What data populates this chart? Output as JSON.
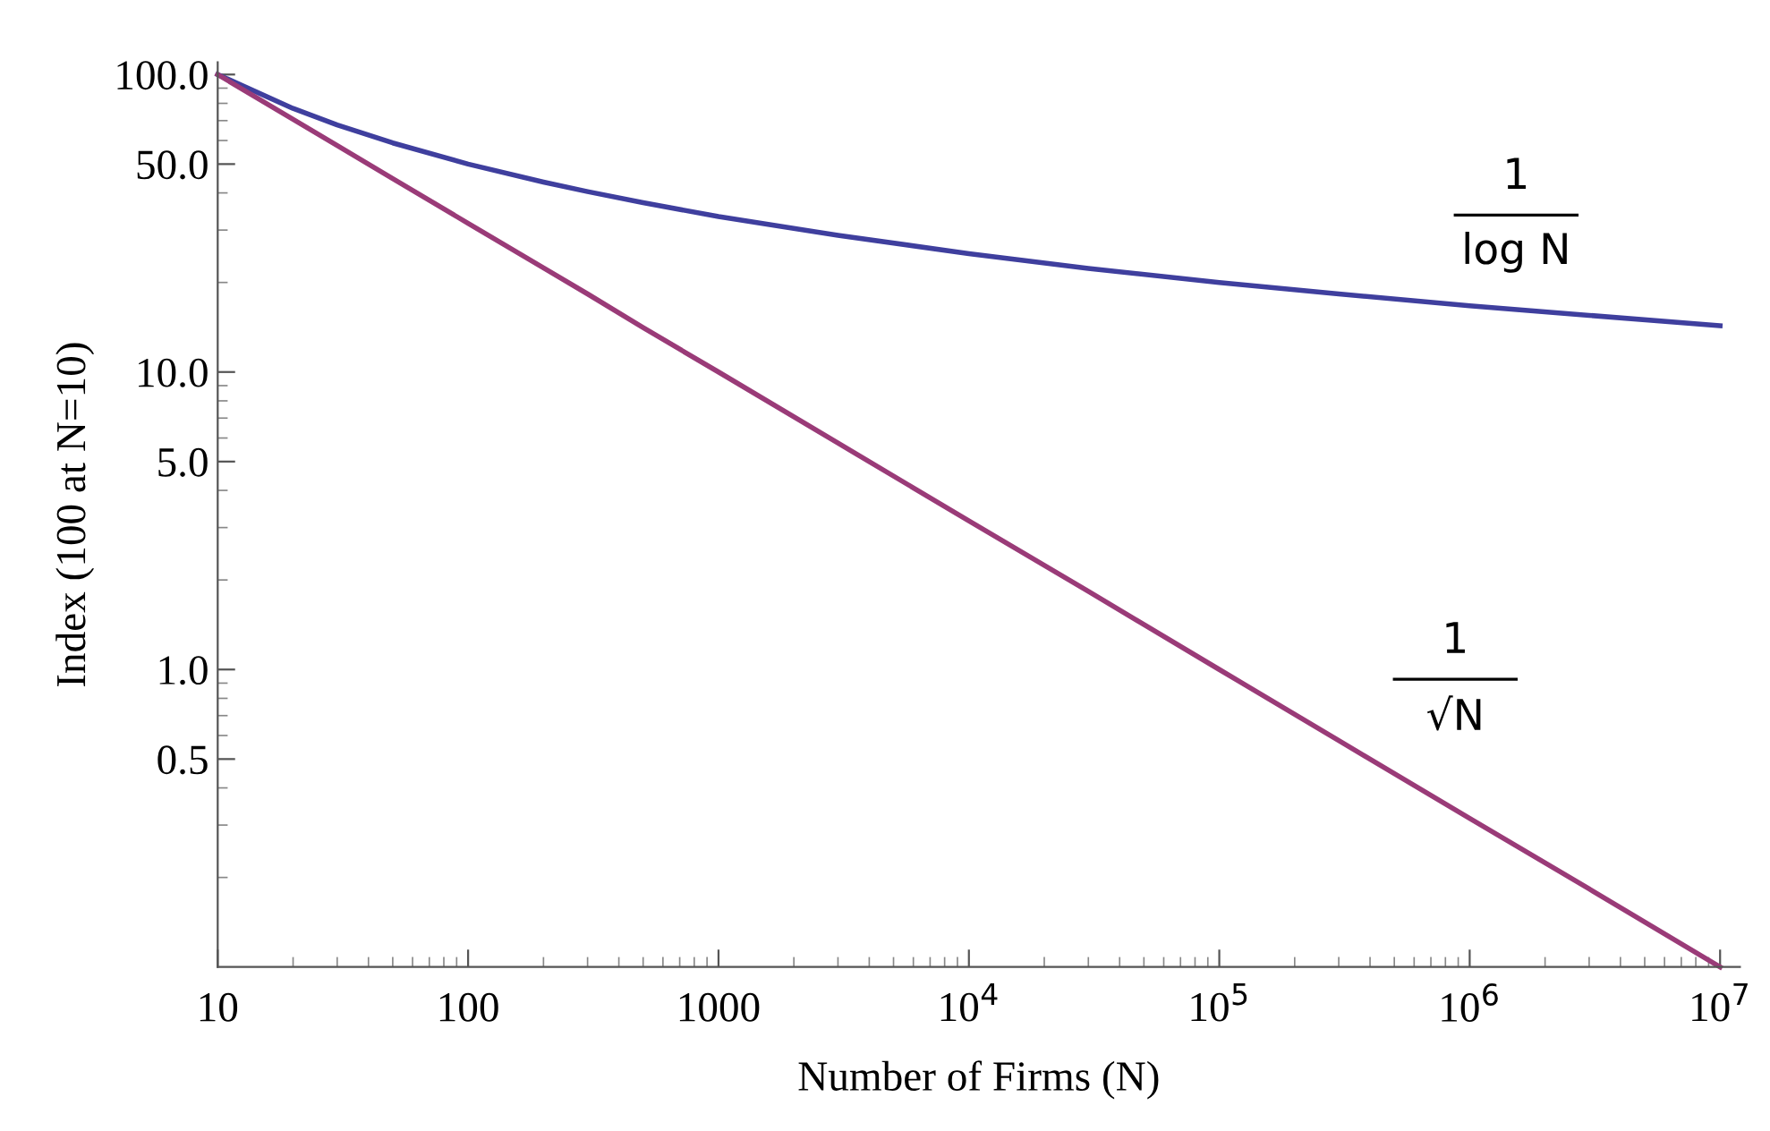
{
  "chart_data": {
    "type": "line",
    "xlabel": "Number of Firms (N)",
    "ylabel": "Index (100 at N=10)",
    "log": "xy",
    "x": [
      10,
      20,
      30,
      50,
      100,
      200,
      300,
      500,
      1000,
      3000,
      10000,
      30000,
      100000,
      300000,
      1000000,
      3000000,
      10000000
    ],
    "series": [
      {
        "color": "#3f3f9e",
        "values": [
          100,
          76.9,
          67.7,
          58.9,
          50,
          43.5,
          40.4,
          37.1,
          33.3,
          28.8,
          25,
          22.3,
          20,
          18.3,
          16.7,
          15.5,
          14.3
        ]
      },
      {
        "color": "#9a3b78",
        "values": [
          100,
          70.7,
          57.7,
          44.7,
          31.6,
          22.4,
          18.3,
          14.1,
          10,
          5.77,
          3.16,
          1.83,
          1,
          0.577,
          0.316,
          0.183,
          0.1
        ]
      }
    ],
    "xlim": [
      10,
      12000000
    ],
    "ylim": [
      0.1,
      110
    ],
    "xticks": [
      10,
      100,
      1000,
      {
        "value": 10000,
        "label": "10$^{4}$"
      },
      {
        "value": 100000,
        "label": "10$^{5}$"
      },
      {
        "value": 1000000,
        "label": "10$^{6}$"
      },
      {
        "value": 10000000,
        "label": "10$^{7}$"
      }
    ],
    "yticks": [
      {
        "value": 100,
        "label": "100.0"
      },
      {
        "value": 50,
        "label": "50.0"
      },
      {
        "value": 10,
        "label": "10.0"
      },
      {
        "value": 5,
        "label": "5.0"
      },
      {
        "value": 1,
        "label": "1.0"
      },
      {
        "value": 0.5,
        "label": "0.5"
      }
    ],
    "grid": false,
    "marker": "none",
    "line_style": "solid",
    "annotations": [
      "1",
      "log N",
      "1",
      "√N"
    ]
  }
}
